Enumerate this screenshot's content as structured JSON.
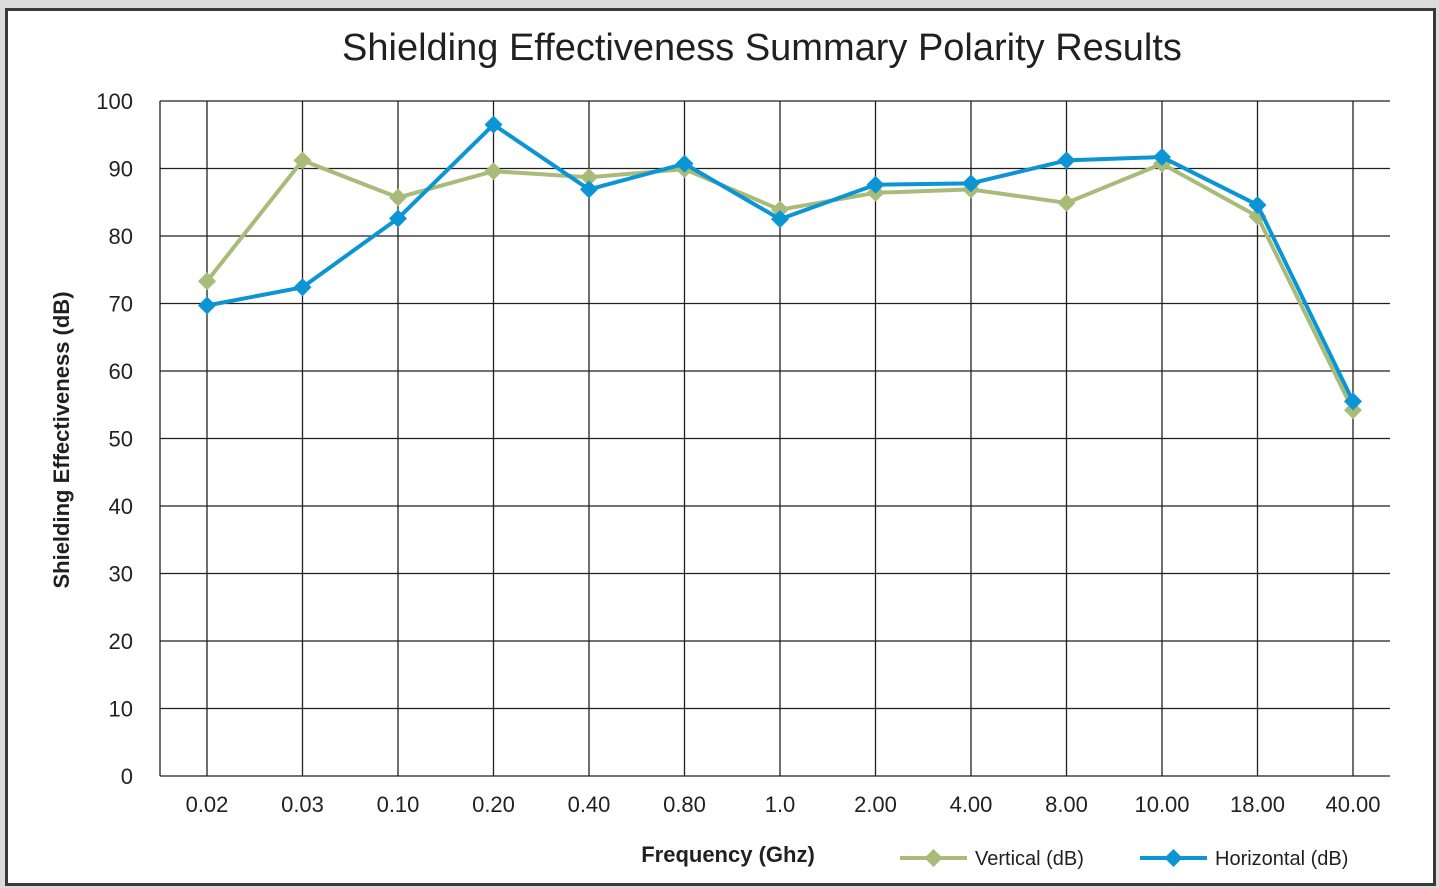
{
  "colors": {
    "vertical": "#a9bb78",
    "horizontal": "#0b95d4",
    "grid": "#231f20"
  },
  "chart_data": {
    "type": "line",
    "title": "Shielding Effectiveness Summary Polarity Results",
    "xlabel": "Frequency (Ghz)",
    "ylabel": "Shielding Effectiveness (dB)",
    "ylim": [
      0,
      100
    ],
    "yticks": [
      "0",
      "10",
      "20",
      "30",
      "40",
      "50",
      "60",
      "70",
      "80",
      "90",
      "100"
    ],
    "categories": [
      "0.02",
      "0.03",
      "0.10",
      "0.20",
      "0.40",
      "0.80",
      "1.0",
      "2.00",
      "4.00",
      "8.00",
      "10.00",
      "18.00",
      "40.00"
    ],
    "grid": true,
    "legend_position": "bottom-right",
    "series": [
      {
        "name": "Vertical (dB)",
        "marker": "diamond",
        "values": [
          73.3,
          91.2,
          85.7,
          89.6,
          88.7,
          89.9,
          83.9,
          86.4,
          86.9,
          84.9,
          90.7,
          82.9,
          54.2
        ]
      },
      {
        "name": "Horizontal (dB)",
        "marker": "diamond",
        "values": [
          69.7,
          72.4,
          82.6,
          96.5,
          86.9,
          90.7,
          82.5,
          87.6,
          87.8,
          91.2,
          91.7,
          84.6,
          55.5
        ]
      }
    ]
  }
}
